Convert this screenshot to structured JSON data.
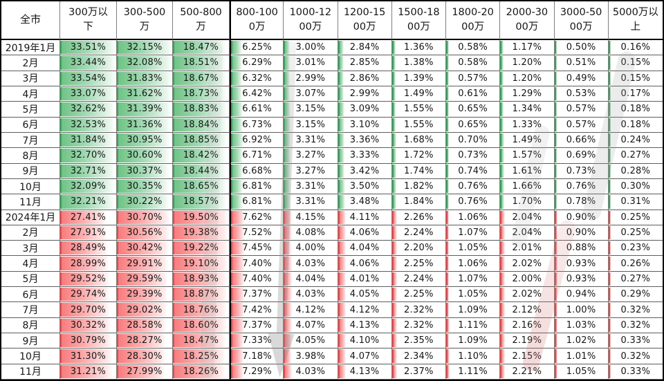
{
  "header": {
    "corner": "全市"
  },
  "chart_data": {
    "type": "table",
    "unit": "percent share of transactions by price band",
    "columns": [
      "300万以下",
      "300-500万",
      "500-800万",
      "800-1000万",
      "1000-1200万",
      "1200-1500万",
      "1500-1800万",
      "1800-2000万",
      "2000-3000万",
      "3000-5000万",
      "5000万以上"
    ],
    "rows": [
      {
        "label": "2019年1月",
        "group": "2019",
        "values": [
          "33.51%",
          "32.15%",
          "18.47%",
          "6.25%",
          "3.00%",
          "2.84%",
          "1.36%",
          "0.58%",
          "1.17%",
          "0.50%",
          "0.16%"
        ]
      },
      {
        "label": "2月",
        "group": "2019",
        "values": [
          "33.44%",
          "32.08%",
          "18.51%",
          "6.29%",
          "3.01%",
          "2.85%",
          "1.38%",
          "0.58%",
          "1.20%",
          "0.51%",
          "0.15%"
        ]
      },
      {
        "label": "3月",
        "group": "2019",
        "values": [
          "33.54%",
          "31.83%",
          "18.67%",
          "6.32%",
          "2.99%",
          "2.86%",
          "1.39%",
          "0.57%",
          "1.20%",
          "0.49%",
          "0.15%"
        ]
      },
      {
        "label": "4月",
        "group": "2019",
        "values": [
          "33.07%",
          "31.62%",
          "18.73%",
          "6.42%",
          "3.07%",
          "2.99%",
          "1.49%",
          "0.61%",
          "1.29%",
          "0.53%",
          "0.17%"
        ]
      },
      {
        "label": "5月",
        "group": "2019",
        "values": [
          "32.62%",
          "31.39%",
          "18.83%",
          "6.61%",
          "3.15%",
          "3.09%",
          "1.55%",
          "0.65%",
          "1.34%",
          "0.57%",
          "0.18%"
        ]
      },
      {
        "label": "6月",
        "group": "2019",
        "values": [
          "32.53%",
          "31.36%",
          "18.84%",
          "6.73%",
          "3.15%",
          "3.10%",
          "1.55%",
          "0.65%",
          "1.33%",
          "0.57%",
          "0.18%"
        ]
      },
      {
        "label": "7月",
        "group": "2019",
        "values": [
          "31.84%",
          "30.95%",
          "18.85%",
          "6.92%",
          "3.31%",
          "3.36%",
          "1.68%",
          "0.70%",
          "1.49%",
          "0.66%",
          "0.24%"
        ]
      },
      {
        "label": "8月",
        "group": "2019",
        "values": [
          "32.70%",
          "30.60%",
          "18.42%",
          "6.71%",
          "3.27%",
          "3.33%",
          "1.72%",
          "0.73%",
          "1.57%",
          "0.69%",
          "0.27%"
        ]
      },
      {
        "label": "9月",
        "group": "2019",
        "values": [
          "32.71%",
          "30.37%",
          "18.44%",
          "6.68%",
          "3.27%",
          "3.42%",
          "1.74%",
          "0.74%",
          "1.61%",
          "0.73%",
          "0.28%"
        ]
      },
      {
        "label": "10月",
        "group": "2019",
        "values": [
          "32.09%",
          "30.35%",
          "18.65%",
          "6.81%",
          "3.31%",
          "3.50%",
          "1.82%",
          "0.76%",
          "1.66%",
          "0.76%",
          "0.30%"
        ]
      },
      {
        "label": "11月",
        "group": "2019",
        "values": [
          "32.21%",
          "30.22%",
          "18.57%",
          "6.81%",
          "3.31%",
          "3.48%",
          "1.84%",
          "0.76%",
          "1.70%",
          "0.78%",
          "0.31%"
        ]
      },
      {
        "label": "2024年1月",
        "group": "2024",
        "values": [
          "27.41%",
          "30.70%",
          "19.50%",
          "7.62%",
          "4.15%",
          "4.11%",
          "2.26%",
          "1.06%",
          "2.04%",
          "0.90%",
          "0.25%"
        ]
      },
      {
        "label": "2月",
        "group": "2024",
        "values": [
          "27.91%",
          "30.56%",
          "19.38%",
          "7.52%",
          "4.08%",
          "4.06%",
          "2.24%",
          "1.07%",
          "2.04%",
          "0.90%",
          "0.25%"
        ]
      },
      {
        "label": "3月",
        "group": "2024",
        "values": [
          "28.49%",
          "30.42%",
          "19.22%",
          "7.45%",
          "4.00%",
          "4.04%",
          "2.20%",
          "1.05%",
          "2.01%",
          "0.88%",
          "0.23%"
        ]
      },
      {
        "label": "4月",
        "group": "2024",
        "values": [
          "28.99%",
          "29.91%",
          "19.10%",
          "7.40%",
          "4.03%",
          "4.06%",
          "2.25%",
          "1.06%",
          "2.02%",
          "0.93%",
          "0.26%"
        ]
      },
      {
        "label": "5月",
        "group": "2024",
        "values": [
          "29.52%",
          "29.59%",
          "18.93%",
          "7.40%",
          "4.04%",
          "4.01%",
          "2.24%",
          "1.07%",
          "2.00%",
          "0.93%",
          "0.27%"
        ]
      },
      {
        "label": "6月",
        "group": "2024",
        "values": [
          "29.74%",
          "29.39%",
          "18.87%",
          "7.37%",
          "4.03%",
          "4.05%",
          "2.25%",
          "1.05%",
          "2.02%",
          "0.94%",
          "0.29%"
        ]
      },
      {
        "label": "7月",
        "group": "2024",
        "values": [
          "29.70%",
          "29.02%",
          "18.76%",
          "7.42%",
          "4.12%",
          "4.12%",
          "2.32%",
          "1.09%",
          "2.12%",
          "1.00%",
          "0.32%"
        ]
      },
      {
        "label": "8月",
        "group": "2024",
        "values": [
          "30.32%",
          "28.58%",
          "18.60%",
          "7.37%",
          "4.07%",
          "4.13%",
          "2.32%",
          "1.11%",
          "2.16%",
          "1.03%",
          "0.32%"
        ]
      },
      {
        "label": "9月",
        "group": "2024",
        "values": [
          "30.79%",
          "28.27%",
          "18.47%",
          "7.33%",
          "4.05%",
          "4.10%",
          "2.35%",
          "1.09%",
          "2.19%",
          "1.02%",
          "0.33%"
        ]
      },
      {
        "label": "10月",
        "group": "2024",
        "values": [
          "31.30%",
          "28.30%",
          "18.25%",
          "7.18%",
          "3.98%",
          "4.07%",
          "2.34%",
          "1.10%",
          "2.15%",
          "1.01%",
          "0.32%"
        ]
      },
      {
        "label": "11月",
        "group": "2024",
        "values": [
          "31.21%",
          "27.99%",
          "18.26%",
          "7.29%",
          "4.03%",
          "4.13%",
          "2.37%",
          "1.11%",
          "2.21%",
          "1.05%",
          "0.33%"
        ]
      }
    ]
  },
  "colors": {
    "green_bar": "#63be7b",
    "green_edge": "#3d9e60",
    "red_bar": "#f8696b",
    "red_edge": "#de4b4e",
    "grid_line": "#5c5c5c",
    "frame": "#000000",
    "text": "#141414"
  },
  "watermarks": [
    {
      "name": "gray-down-arrow"
    },
    {
      "name": "gray-streak-left"
    },
    {
      "name": "gray-streak-topright"
    },
    {
      "name": "gray-streak-midright"
    },
    {
      "name": "red-streak-bottomright"
    }
  ]
}
